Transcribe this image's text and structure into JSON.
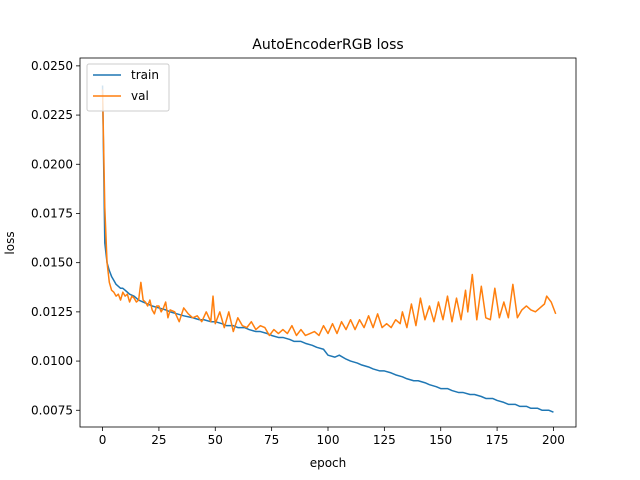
{
  "chart_data": {
    "type": "line",
    "title": "AutoEncoderRGB loss",
    "xlabel": "epoch",
    "ylabel": "loss",
    "xlim": [
      -10,
      210
    ],
    "ylim": [
      0.00665,
      0.0254
    ],
    "xticks": [
      0,
      25,
      50,
      75,
      100,
      125,
      150,
      175,
      200
    ],
    "xtick_labels": [
      "0",
      "25",
      "50",
      "75",
      "100",
      "125",
      "150",
      "175",
      "200"
    ],
    "yticks": [
      0.0075,
      0.01,
      0.0125,
      0.015,
      0.0175,
      0.02,
      0.0225,
      0.025
    ],
    "ytick_labels": [
      "0.0075",
      "0.0100",
      "0.0125",
      "0.0150",
      "0.0175",
      "0.0200",
      "0.0225",
      "0.0250"
    ],
    "grid": false,
    "legend_position": "top-left",
    "series": [
      {
        "name": "train",
        "color": "#1f77b4",
        "x": [
          0,
          1,
          2,
          3,
          4,
          5,
          6,
          7,
          8,
          9,
          10,
          12,
          14,
          16,
          18,
          20,
          22,
          25,
          28,
          30,
          33,
          36,
          40,
          43,
          45,
          48,
          50,
          53,
          55,
          58,
          60,
          63,
          65,
          68,
          70,
          73,
          75,
          78,
          80,
          83,
          85,
          88,
          90,
          93,
          95,
          98,
          100,
          103,
          105,
          108,
          110,
          113,
          115,
          118,
          120,
          123,
          125,
          128,
          130,
          133,
          135,
          138,
          140,
          143,
          145,
          148,
          150,
          153,
          155,
          158,
          160,
          163,
          165,
          168,
          170,
          173,
          175,
          178,
          180,
          183,
          185,
          188,
          190,
          193,
          195,
          198,
          200
        ],
        "values": [
          0.024,
          0.016,
          0.015,
          0.0146,
          0.0143,
          0.0141,
          0.0139,
          0.0138,
          0.0137,
          0.0137,
          0.0136,
          0.0134,
          0.0133,
          0.0131,
          0.013,
          0.0129,
          0.0128,
          0.0127,
          0.0126,
          0.0125,
          0.0124,
          0.0123,
          0.0122,
          0.0121,
          0.0121,
          0.012,
          0.012,
          0.0119,
          0.0118,
          0.0118,
          0.0117,
          0.0117,
          0.0116,
          0.0115,
          0.0115,
          0.0114,
          0.0113,
          0.0112,
          0.0112,
          0.0111,
          0.011,
          0.011,
          0.0109,
          0.0108,
          0.0107,
          0.0106,
          0.0103,
          0.0102,
          0.0103,
          0.0101,
          0.01,
          0.0099,
          0.0098,
          0.0097,
          0.0096,
          0.0095,
          0.0095,
          0.0094,
          0.0093,
          0.0092,
          0.0091,
          0.009,
          0.009,
          0.0089,
          0.0088,
          0.0087,
          0.0086,
          0.0086,
          0.0085,
          0.0084,
          0.0084,
          0.0083,
          0.0083,
          0.0082,
          0.0081,
          0.0081,
          0.008,
          0.0079,
          0.0078,
          0.0078,
          0.0077,
          0.0077,
          0.0076,
          0.0076,
          0.0075,
          0.0075,
          0.0074
        ]
      },
      {
        "name": "val",
        "color": "#ff7f0e",
        "x": [
          0,
          1,
          2,
          3,
          4,
          5,
          6,
          7,
          8,
          9,
          10,
          11,
          12,
          13,
          14,
          15,
          16,
          17,
          18,
          19,
          20,
          21,
          22,
          23,
          24,
          25,
          26,
          27,
          28,
          29,
          30,
          32,
          34,
          36,
          38,
          40,
          42,
          44,
          46,
          48,
          49,
          50,
          52,
          54,
          56,
          58,
          60,
          62,
          64,
          66,
          68,
          70,
          72,
          74,
          76,
          78,
          80,
          82,
          84,
          86,
          88,
          90,
          92,
          94,
          96,
          98,
          100,
          102,
          104,
          106,
          108,
          110,
          112,
          114,
          116,
          118,
          120,
          122,
          124,
          126,
          128,
          130,
          132,
          133,
          135,
          137,
          139,
          141,
          143,
          145,
          147,
          149,
          151,
          153,
          155,
          157,
          159,
          161,
          162,
          164,
          166,
          168,
          170,
          172,
          174,
          176,
          178,
          180,
          182,
          184,
          186,
          188,
          190,
          192,
          194,
          196,
          197,
          199,
          201
        ],
        "values": [
          0.0238,
          0.0178,
          0.015,
          0.014,
          0.0136,
          0.0135,
          0.0133,
          0.0134,
          0.0131,
          0.0135,
          0.0133,
          0.0134,
          0.013,
          0.0133,
          0.0132,
          0.013,
          0.0131,
          0.014,
          0.0131,
          0.013,
          0.0128,
          0.0131,
          0.0126,
          0.0124,
          0.0128,
          0.0128,
          0.0125,
          0.0127,
          0.013,
          0.0122,
          0.0126,
          0.0125,
          0.012,
          0.0127,
          0.0124,
          0.0122,
          0.0123,
          0.012,
          0.0125,
          0.012,
          0.0133,
          0.0119,
          0.0125,
          0.0117,
          0.0125,
          0.0115,
          0.0122,
          0.0118,
          0.0117,
          0.012,
          0.0116,
          0.0118,
          0.0117,
          0.0113,
          0.0116,
          0.0114,
          0.0116,
          0.0114,
          0.0118,
          0.0113,
          0.0116,
          0.0113,
          0.0114,
          0.0115,
          0.0113,
          0.0118,
          0.0114,
          0.0119,
          0.0114,
          0.012,
          0.0116,
          0.0121,
          0.0116,
          0.0121,
          0.0117,
          0.0123,
          0.0117,
          0.0124,
          0.0117,
          0.0119,
          0.0117,
          0.0121,
          0.0119,
          0.0125,
          0.0117,
          0.0129,
          0.0118,
          0.0132,
          0.0121,
          0.0128,
          0.012,
          0.013,
          0.0121,
          0.0133,
          0.012,
          0.0132,
          0.0121,
          0.0136,
          0.0125,
          0.0144,
          0.0121,
          0.0138,
          0.0122,
          0.0121,
          0.0137,
          0.0122,
          0.013,
          0.0122,
          0.0139,
          0.0122,
          0.0126,
          0.0128,
          0.0126,
          0.0125,
          0.0127,
          0.0129,
          0.0133,
          0.013,
          0.0124
        ]
      }
    ]
  }
}
